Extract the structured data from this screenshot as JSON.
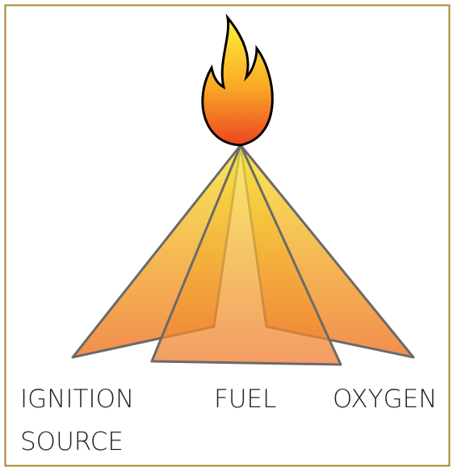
{
  "labels": {
    "ignition_source": [
      "IGNITION",
      "SOURCE"
    ],
    "fuel": "FUEL",
    "oxygen": "OXYGEN"
  }
}
